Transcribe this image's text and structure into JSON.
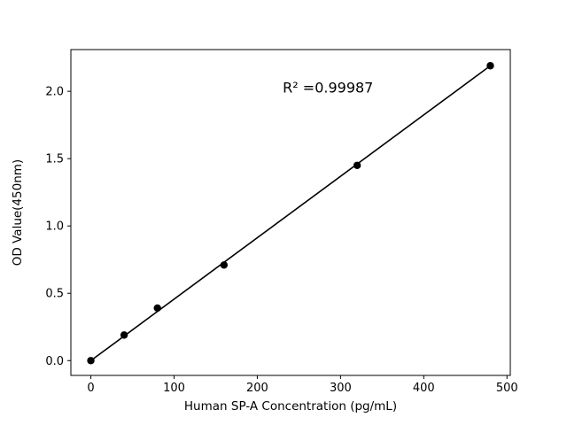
{
  "figure": {
    "background": "#ffffff"
  },
  "chart_data": {
    "type": "scatter",
    "title": "",
    "xlabel": "Human SP-A Concentration (pg/mL)",
    "ylabel": "OD Value(450nm)",
    "x": [
      0,
      40,
      80,
      160,
      320,
      480
    ],
    "y": [
      0.0,
      0.19,
      0.39,
      0.71,
      1.45,
      2.19
    ],
    "fit_line": {
      "x": [
        0,
        480
      ],
      "y": [
        0.0,
        2.19
      ]
    },
    "annotation": {
      "text": "R² =0.99987",
      "x": 285,
      "y": 1.99
    },
    "xlim": [
      -24,
      504
    ],
    "ylim": [
      -0.11,
      2.31
    ],
    "xticks": [
      0,
      100,
      200,
      300,
      400,
      500
    ],
    "xticklabels": [
      "0",
      "100",
      "200",
      "300",
      "400",
      "500"
    ],
    "yticks": [
      0.0,
      0.5,
      1.0,
      1.5,
      2.0
    ],
    "yticklabels": [
      "0.0",
      "0.5",
      "1.0",
      "1.5",
      "2.0"
    ],
    "grid": false,
    "legend": false,
    "line_color": "#000000",
    "marker_color": "#000000",
    "spine_color": "#000000",
    "tick_font_px": 13,
    "label_font_px": 13.5,
    "annotation_font_px": 16
  }
}
